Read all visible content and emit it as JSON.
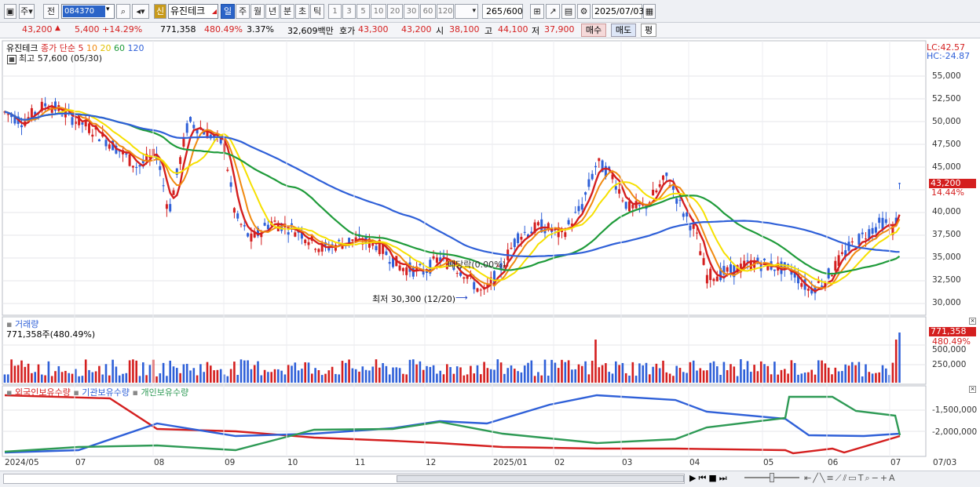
{
  "toolbar": {
    "type_label": "주",
    "mode_label": "전",
    "stock_code": "084370",
    "new_label": "신",
    "stock_name": "유진테크",
    "periods": [
      "일",
      "주",
      "월",
      "년",
      "분",
      "초",
      "틱"
    ],
    "active_period": "일",
    "intervals": [
      "1",
      "3",
      "5",
      "10",
      "20",
      "30",
      "60",
      "120"
    ],
    "count": "265",
    "count_total": "/600",
    "date": "2025/07/03"
  },
  "quote": {
    "price": "43,200",
    "change": "5,400",
    "change_pct": "+14.29%",
    "volume": "771,358",
    "volume_ratio": "480.49%",
    "turnover": "3.37%",
    "amount": "32,609백만",
    "bid_label": "호가",
    "ask_price": "43,300",
    "bid_price": "43,200",
    "open_label": "시",
    "open": "38,100",
    "high_label": "고",
    "high": "44,100",
    "low_label": "저",
    "low": "37,900",
    "buy_label": "매수",
    "sell_label": "매도",
    "eval_label": "평"
  },
  "price_panel": {
    "legend_name": "유진테크",
    "legend_ma": "종가 단순 5",
    "ma_periods": [
      "10",
      "20",
      "60",
      "120"
    ],
    "ma_colors": [
      "#d41f1f",
      "#f08a10",
      "#f0d400",
      "#1f9b3a",
      "#2f60d8"
    ],
    "high_note": "최고 57,600 (05/30)",
    "low_note": "최저 30,300 (12/20)",
    "ex_note": "배당락(0.00%)",
    "lc": "LC:42.57",
    "hc": "HC:-24.87",
    "current": "43,200",
    "current_pct": "14.44%",
    "y_ticks": [
      "55,000",
      "52,500",
      "50,000",
      "47,500",
      "45,000",
      "42,500",
      "40,000",
      "37,500",
      "35,000",
      "32,500",
      "30,000"
    ]
  },
  "volume_panel": {
    "title": "거래량",
    "value": "771,358주(480.49%)",
    "badge_value": "771,358",
    "badge_pct": "480.49%",
    "y_ticks": [
      "500,000",
      "250,000"
    ]
  },
  "holding_panel": {
    "series": [
      "외국인보유수량",
      "기관보유수량",
      "개인보유수량"
    ],
    "colors": [
      "#d41f1f",
      "#2f60d8",
      "#2e9a55"
    ],
    "y_ticks": [
      "-1,500,000",
      "-2,000,000"
    ]
  },
  "x_axis": {
    "labels": [
      "2024/05",
      "07",
      "08",
      "09",
      "10",
      "11",
      "12",
      "2025/01",
      "02",
      "03",
      "04",
      "05",
      "06",
      "07"
    ],
    "right_label": "07/03"
  }
}
